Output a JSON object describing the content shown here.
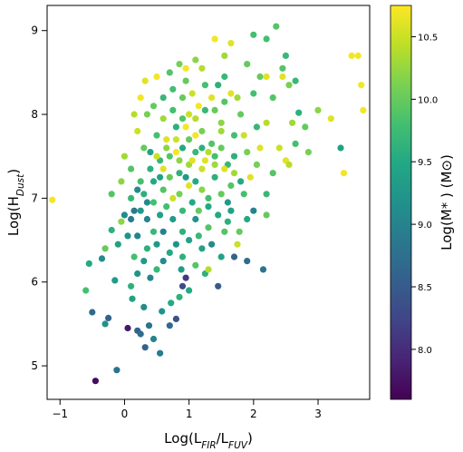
{
  "chart_data": {
    "type": "scatter",
    "title": "",
    "xlabel_parts": [
      {
        "text": "Log(L",
        "sub": false
      },
      {
        "text": "FIR",
        "sub": true
      },
      {
        "text": "/L",
        "sub": false
      },
      {
        "text": "FUV",
        "sub": true
      },
      {
        "text": ")",
        "sub": false
      }
    ],
    "ylabel_parts": [
      {
        "text": "Log(H",
        "sub": false
      },
      {
        "text": "Dust",
        "sub": true
      },
      {
        "text": ")",
        "sub": false
      }
    ],
    "colorbar_label": "Log(M* ) (M⊙)",
    "xlim": [
      -1.2,
      3.8
    ],
    "ylim": [
      4.6,
      9.3
    ],
    "color_range": [
      7.6,
      10.75
    ],
    "colormap": "viridis",
    "xticks": [
      -1,
      0,
      1,
      2,
      3
    ],
    "xtick_labels": [
      "−1",
      "0",
      "1",
      "2",
      "3"
    ],
    "yticks": [
      5,
      6,
      7,
      8,
      9
    ],
    "ytick_labels": [
      "5",
      "6",
      "7",
      "8",
      "9"
    ],
    "colorbar_ticks": [
      8.0,
      8.5,
      9.0,
      9.5,
      10.0,
      10.5
    ],
    "colorbar_tick_labels": [
      "8.0",
      "8.5",
      "9.0",
      "9.5",
      "10.0",
      "10.5"
    ],
    "grid": false,
    "legend": "none",
    "points": [
      [
        -1.12,
        6.98,
        10.7
      ],
      [
        -0.45,
        4.82,
        7.7
      ],
      [
        -0.6,
        5.9,
        9.8
      ],
      [
        -0.55,
        6.22,
        9.5
      ],
      [
        -0.5,
        5.64,
        8.7
      ],
      [
        -0.3,
        5.5,
        9.2
      ],
      [
        -0.25,
        5.57,
        8.6
      ],
      [
        -0.12,
        4.95,
        8.8
      ],
      [
        -0.3,
        6.4,
        10.0
      ],
      [
        -0.35,
        6.28,
        9.1
      ],
      [
        -0.2,
        6.62,
        9.6
      ],
      [
        -0.15,
        6.02,
        9.3
      ],
      [
        -0.1,
        6.45,
        9.4
      ],
      [
        -0.05,
        6.72,
        10.2
      ],
      [
        -0.2,
        7.05,
        9.9
      ],
      [
        0.05,
        5.45,
        7.8
      ],
      [
        0.2,
        5.42,
        8.6
      ],
      [
        0.25,
        5.38,
        8.7
      ],
      [
        0.32,
        5.22,
        8.6
      ],
      [
        0.45,
        5.32,
        9.0
      ],
      [
        0.38,
        5.48,
        8.8
      ],
      [
        0.12,
        5.8,
        9.4
      ],
      [
        0.1,
        5.95,
        9.6
      ],
      [
        0.2,
        6.1,
        9.2
      ],
      [
        0.3,
        5.7,
        9.1
      ],
      [
        0.55,
        5.15,
        8.9
      ],
      [
        0.58,
        5.65,
        9.2
      ],
      [
        0.7,
        5.48,
        8.7
      ],
      [
        0.8,
        5.56,
        8.4
      ],
      [
        0.72,
        5.75,
        9.5
      ],
      [
        0.85,
        5.82,
        9.6
      ],
      [
        0.9,
        5.95,
        8.3
      ],
      [
        0.95,
        6.05,
        8.1
      ],
      [
        1.0,
        5.9,
        9.5
      ],
      [
        0.88,
        6.15,
        9.3
      ],
      [
        1.1,
        6.2,
        9.9
      ],
      [
        1.25,
        6.1,
        9.6
      ],
      [
        1.3,
        6.15,
        10.4
      ],
      [
        1.45,
        5.95,
        8.5
      ],
      [
        1.5,
        6.3,
        9.4
      ],
      [
        1.7,
        6.3,
        8.6
      ],
      [
        1.9,
        6.25,
        8.7
      ],
      [
        2.15,
        6.15,
        8.8
      ],
      [
        1.75,
        6.45,
        10.5
      ],
      [
        1.78,
        6.6,
        10.0
      ],
      [
        1.6,
        6.72,
        9.6
      ],
      [
        1.9,
        6.75,
        9.5
      ],
      [
        2.0,
        6.85,
        9.0
      ],
      [
        2.2,
        6.8,
        10.0
      ],
      [
        2.2,
        7.05,
        9.7
      ],
      [
        2.5,
        7.45,
        10.6
      ],
      [
        2.55,
        7.4,
        10.4
      ],
      [
        2.65,
        7.65,
        9.8
      ],
      [
        2.6,
        7.9,
        10.3
      ],
      [
        2.7,
        8.02,
        9.6
      ],
      [
        2.65,
        8.4,
        9.7
      ],
      [
        2.55,
        8.35,
        10.1
      ],
      [
        2.45,
        8.45,
        10.6
      ],
      [
        2.5,
        8.7,
        9.7
      ],
      [
        2.45,
        8.55,
        9.9
      ],
      [
        2.35,
        9.05,
        9.9
      ],
      [
        2.2,
        8.9,
        9.8
      ],
      [
        2.0,
        8.95,
        9.8
      ],
      [
        1.9,
        8.6,
        10.0
      ],
      [
        1.65,
        8.85,
        10.6
      ],
      [
        1.4,
        8.9,
        10.7
      ],
      [
        1.55,
        8.7,
        10.3
      ],
      [
        1.2,
        8.55,
        10.4
      ],
      [
        1.1,
        8.65,
        10.2
      ],
      [
        0.95,
        8.55,
        10.7
      ],
      [
        0.85,
        8.6,
        10.1
      ],
      [
        0.7,
        8.5,
        9.9
      ],
      [
        0.5,
        8.45,
        10.7
      ],
      [
        0.32,
        8.4,
        10.6
      ],
      [
        0.25,
        8.2,
        10.7
      ],
      [
        0.35,
        8.0,
        10.1
      ],
      [
        0.15,
        8.0,
        10.4
      ],
      [
        0.2,
        7.8,
        10.5
      ],
      [
        0.3,
        7.6,
        10.0
      ],
      [
        0.0,
        7.5,
        10.3
      ],
      [
        -0.05,
        7.2,
        10.2
      ],
      [
        0.1,
        7.0,
        9.7
      ],
      [
        0.1,
        7.35,
        9.9
      ],
      [
        0.25,
        7.2,
        9.8
      ],
      [
        3.0,
        8.05,
        10.2
      ],
      [
        3.2,
        7.95,
        10.6
      ],
      [
        3.35,
        7.6,
        9.4
      ],
      [
        3.4,
        7.3,
        10.7
      ],
      [
        3.52,
        8.7,
        10.7
      ],
      [
        3.62,
        8.7,
        10.7
      ],
      [
        3.67,
        8.35,
        10.7
      ],
      [
        3.7,
        8.05,
        10.7
      ],
      [
        2.85,
        7.55,
        10.1
      ],
      [
        2.8,
        7.85,
        10.0
      ],
      [
        2.3,
        7.3,
        9.9
      ],
      [
        2.4,
        7.6,
        10.5
      ],
      [
        2.1,
        7.6,
        10.6
      ],
      [
        2.2,
        7.9,
        10.4
      ],
      [
        2.3,
        8.2,
        9.9
      ],
      [
        2.1,
        8.45,
        10.0
      ],
      [
        2.2,
        8.45,
        10.6
      ],
      [
        2.0,
        8.25,
        9.8
      ],
      [
        1.8,
        8.0,
        10.0
      ],
      [
        1.85,
        7.75,
        10.5
      ],
      [
        1.7,
        7.5,
        9.6
      ],
      [
        1.95,
        7.25,
        10.6
      ],
      [
        2.05,
        7.4,
        10.1
      ],
      [
        1.65,
        7.15,
        9.9
      ],
      [
        1.5,
        7.8,
        10.3
      ],
      [
        1.35,
        8.2,
        10.6
      ],
      [
        1.55,
        8.45,
        9.7
      ],
      [
        1.25,
        8.35,
        9.8
      ],
      [
        1.05,
        8.25,
        10.5
      ],
      [
        0.9,
        8.2,
        10.0
      ],
      [
        0.75,
        8.05,
        9.8
      ],
      [
        0.6,
        7.95,
        10.3
      ],
      [
        0.5,
        7.75,
        9.8
      ],
      [
        0.4,
        7.55,
        9.4
      ],
      [
        0.55,
        7.45,
        9.7
      ],
      [
        0.65,
        7.6,
        10.2
      ],
      [
        0.8,
        7.7,
        10.5
      ],
      [
        0.95,
        7.85,
        10.7
      ],
      [
        1.1,
        7.95,
        10.4
      ],
      [
        1.2,
        7.8,
        10.1
      ],
      [
        1.35,
        7.65,
        9.9
      ],
      [
        1.25,
        7.45,
        10.6
      ],
      [
        1.1,
        7.55,
        9.7
      ],
      [
        1.0,
        7.4,
        10.3
      ],
      [
        0.85,
        7.3,
        9.6
      ],
      [
        0.7,
        7.25,
        10.0
      ],
      [
        0.6,
        7.1,
        9.9
      ],
      [
        0.45,
        7.2,
        9.5
      ],
      [
        0.35,
        6.95,
        9.1
      ],
      [
        0.25,
        6.85,
        9.3
      ],
      [
        0.2,
        6.55,
        9.0
      ],
      [
        0.35,
        6.4,
        9.6
      ],
      [
        0.45,
        6.6,
        9.7
      ],
      [
        0.55,
        6.8,
        9.4
      ],
      [
        0.65,
        6.9,
        9.8
      ],
      [
        0.75,
        7.0,
        10.5
      ],
      [
        0.85,
        7.05,
        10.1
      ],
      [
        1.0,
        7.15,
        10.6
      ],
      [
        1.1,
        7.2,
        9.5
      ],
      [
        1.2,
        7.1,
        10.2
      ],
      [
        1.3,
        7.0,
        9.8
      ],
      [
        1.4,
        7.25,
        9.6
      ],
      [
        1.5,
        7.05,
        10.0
      ],
      [
        1.6,
        6.95,
        9.3
      ],
      [
        1.45,
        6.8,
        9.5
      ],
      [
        1.3,
        6.65,
        9.9
      ],
      [
        1.15,
        6.55,
        9.7
      ],
      [
        1.0,
        6.5,
        9.4
      ],
      [
        0.9,
        6.6,
        9.6
      ],
      [
        0.8,
        6.45,
        9.2
      ],
      [
        0.7,
        6.35,
        9.5
      ],
      [
        0.6,
        6.25,
        9.1
      ],
      [
        0.5,
        6.15,
        9.7
      ],
      [
        0.4,
        6.05,
        9.0
      ],
      [
        0.3,
        6.25,
        9.3
      ],
      [
        0.15,
        6.3,
        9.8
      ],
      [
        0.05,
        6.55,
        9.2
      ],
      [
        0.0,
        6.8,
        9.1
      ],
      [
        0.1,
        6.75,
        8.9
      ],
      [
        0.2,
        7.1,
        9.1
      ],
      [
        0.4,
        7.35,
        9.6
      ],
      [
        0.5,
        7.5,
        10.5
      ],
      [
        0.6,
        7.35,
        10.6
      ],
      [
        0.7,
        7.5,
        9.9
      ],
      [
        0.8,
        7.55,
        10.7
      ],
      [
        0.9,
        7.6,
        9.5
      ],
      [
        1.0,
        7.7,
        10.0
      ],
      [
        1.1,
        7.75,
        10.7
      ],
      [
        1.2,
        7.6,
        9.6
      ],
      [
        1.3,
        7.55,
        10.4
      ],
      [
        1.4,
        7.5,
        9.8
      ],
      [
        1.5,
        7.6,
        10.0
      ],
      [
        1.6,
        7.4,
        9.7
      ],
      [
        1.7,
        7.3,
        10.3
      ],
      [
        1.8,
        7.2,
        9.5
      ],
      [
        1.85,
        7.05,
        9.8
      ],
      [
        1.55,
        7.35,
        10.6
      ],
      [
        1.0,
        8.0,
        10.5
      ],
      [
        0.9,
        7.95,
        9.9
      ],
      [
        0.8,
        7.85,
        9.6
      ],
      [
        1.15,
        8.1,
        10.7
      ],
      [
        1.25,
        8.05,
        9.7
      ],
      [
        1.4,
        8.05,
        10.0
      ],
      [
        1.55,
        8.15,
        9.9
      ],
      [
        1.65,
        8.25,
        10.6
      ],
      [
        0.95,
        8.4,
        10.0
      ],
      [
        0.75,
        8.3,
        9.8
      ],
      [
        0.6,
        8.2,
        9.7
      ],
      [
        0.45,
        8.1,
        10.0
      ],
      [
        1.2,
        6.4,
        9.4
      ],
      [
        1.35,
        6.45,
        9.1
      ],
      [
        1.55,
        6.6,
        9.9
      ],
      [
        1.65,
        6.85,
        9.4
      ],
      [
        0.75,
        6.75,
        9.3
      ],
      [
        0.6,
        6.6,
        9.0
      ],
      [
        0.9,
        6.85,
        9.7
      ],
      [
        1.05,
        6.95,
        9.5
      ],
      [
        1.15,
        6.85,
        10.0
      ],
      [
        0.95,
        7.25,
        9.3
      ],
      [
        1.2,
        7.35,
        10.5
      ],
      [
        1.05,
        7.45,
        10.6
      ],
      [
        0.85,
        7.45,
        10.2
      ],
      [
        0.65,
        7.7,
        10.6
      ],
      [
        0.55,
        7.25,
        9.4
      ],
      [
        0.45,
        6.95,
        9.8
      ],
      [
        0.3,
        7.05,
        9.6
      ],
      [
        0.15,
        6.85,
        8.9
      ],
      [
        1.5,
        7.9,
        10.2
      ],
      [
        1.7,
        7.75,
        9.8
      ],
      [
        1.9,
        7.55,
        10.1
      ],
      [
        2.05,
        7.85,
        9.7
      ],
      [
        1.75,
        8.2,
        10.3
      ],
      [
        1.45,
        8.35,
        9.6
      ],
      [
        0.5,
        6.45,
        9.3
      ],
      [
        0.35,
        6.75,
        9.0
      ],
      [
        0.9,
        6.3,
        9.6
      ],
      [
        1.1,
        6.75,
        9.2
      ],
      [
        1.3,
        6.9,
        9.5
      ],
      [
        1.4,
        7.4,
        10.3
      ]
    ]
  }
}
